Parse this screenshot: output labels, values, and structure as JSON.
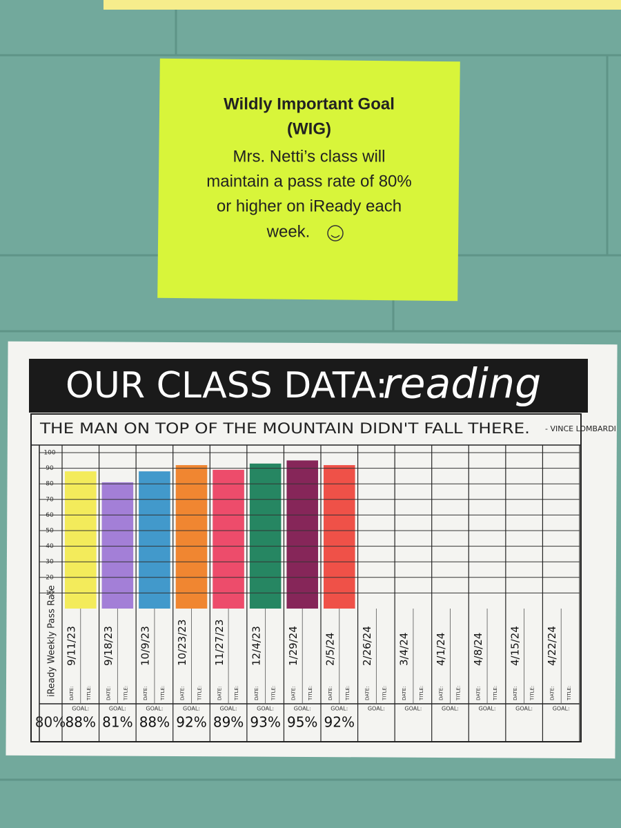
{
  "sign": {
    "title": "Wildly Important Goal",
    "subtitle": "(WIG)",
    "body": [
      "Mrs. Netti’s class will",
      "maintain a pass rate of 80%",
      "or higher on iReady each",
      "week."
    ]
  },
  "chart_data": {
    "type": "bar",
    "title": "OUR CLASS DATA:",
    "title_script": "reading",
    "subtitle": "THE MAN ON TOP OF THE MOUNTAIN DIDN'T FALL THERE.",
    "attribution": "- VINCE LOMBARDI",
    "y_label": "iReady Weekly Pass Rate",
    "goal_text": "80%",
    "date_label": "DATE:",
    "title_label": "TITLE:",
    "goal_label": "GOAL:",
    "categories": [
      "9/11/23",
      "9/18/23",
      "10/9/23",
      "10/23/23",
      "11/27/23",
      "12/4/23",
      "1/29/24",
      "2/5/24",
      "2/26/24",
      "3/4/24",
      "4/1/24",
      "4/8/24",
      "4/15/24",
      "4/22/24"
    ],
    "values": [
      88,
      81,
      88,
      92,
      89,
      93,
      95,
      92,
      null,
      null,
      null,
      null,
      null,
      null
    ],
    "value_labels": [
      "88%",
      "81%",
      "88%",
      "92%",
      "89%",
      "93%",
      "95%",
      "92%",
      null,
      null,
      null,
      null,
      null,
      null
    ],
    "colors": [
      "#f3ea4a",
      "#9a72d4",
      "#2f8fc6",
      "#f07a1c",
      "#ec3a5c",
      "#0f7a52",
      "#7a0f48",
      "#ee3f35"
    ],
    "ylim": [
      0,
      100
    ],
    "yticks": [
      10,
      20,
      30,
      40,
      50,
      60,
      70,
      80,
      90,
      100
    ],
    "grid": true
  }
}
